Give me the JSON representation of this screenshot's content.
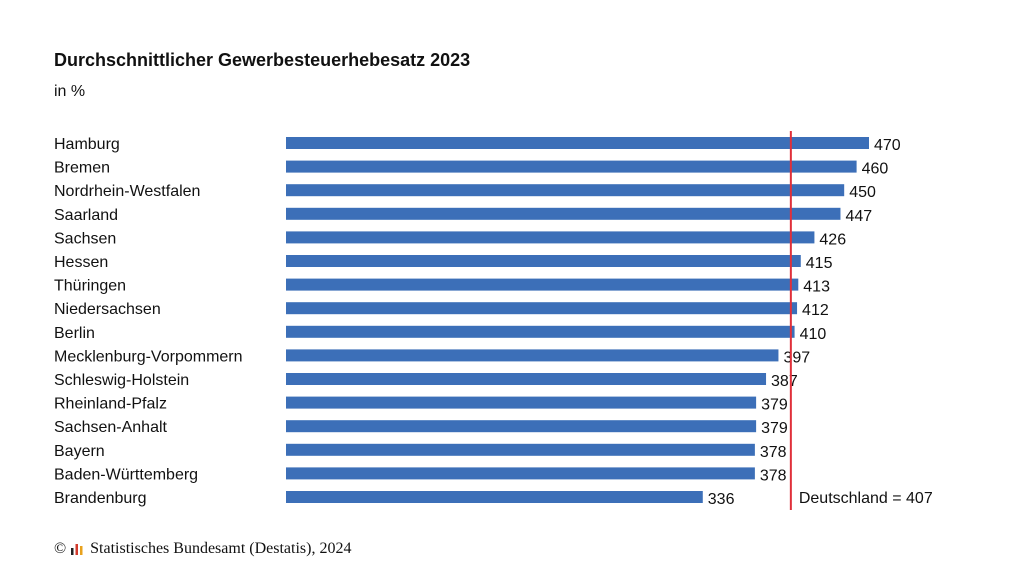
{
  "chart_data": {
    "type": "bar",
    "orientation": "horizontal",
    "title": "Durchschnittlicher Gewerbesteuerhebesatz 2023",
    "subtitle": "in %",
    "categories": [
      "Hamburg",
      "Bremen",
      "Nordrhein-Westfalen",
      "Saarland",
      "Sachsen",
      "Hessen",
      "Thüringen",
      "Niedersachsen",
      "Berlin",
      "Mecklenburg-Vorpommern",
      "Schleswig-Holstein",
      "Rheinland-Pfalz",
      "Sachsen-Anhalt",
      "Bayern",
      "Baden-Württemberg",
      "Brandenburg"
    ],
    "values": [
      470,
      460,
      450,
      447,
      426,
      415,
      413,
      412,
      410,
      397,
      387,
      379,
      379,
      378,
      378,
      336
    ],
    "xlim": [
      0,
      470
    ],
    "reference_line": {
      "value": 407,
      "label": "Deutschland = 407",
      "color": "#e0303a"
    },
    "bar_color": "#3c6fb8",
    "grid": false,
    "legend": "none"
  },
  "footer": {
    "copyright_symbol": "©",
    "source": "Statistisches Bundesamt (Destatis), 2024",
    "logo": "destatis-logo-icon"
  }
}
